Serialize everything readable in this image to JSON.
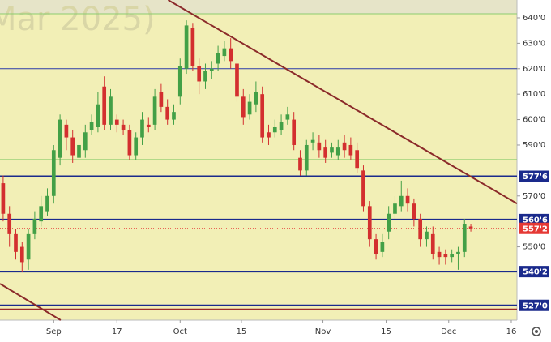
{
  "chart_data": {
    "type": "candlestick",
    "watermark": "Mar 2025)",
    "up_color": "#43a047",
    "down_color": "#d32f2f",
    "open": [
      575,
      563,
      555,
      550,
      545,
      555,
      560,
      564,
      570,
      585,
      598,
      593,
      585,
      588,
      596,
      597,
      613,
      598,
      600,
      598,
      596,
      586,
      593,
      598,
      598,
      611,
      605,
      600,
      609,
      620,
      636,
      621,
      615,
      619,
      622,
      625,
      628,
      622,
      609,
      602,
      606,
      610,
      595,
      595,
      596,
      600,
      600,
      585,
      580,
      591,
      591,
      589,
      587,
      586,
      591,
      590,
      588,
      580,
      566,
      553,
      548,
      556,
      563,
      566,
      570,
      567,
      561,
      553,
      555,
      548,
      547,
      546,
      547,
      548,
      558
    ],
    "high": [
      578,
      566,
      557,
      552,
      557,
      564,
      570,
      573,
      590,
      602,
      600,
      596,
      592,
      598,
      602,
      611,
      617,
      612,
      602,
      600,
      598,
      595,
      603,
      601,
      612,
      614,
      608,
      606,
      624,
      639,
      638,
      624,
      622,
      623,
      629,
      631,
      632,
      624,
      612,
      610,
      615,
      613,
      598,
      600,
      602,
      605,
      603,
      588,
      592,
      595,
      594,
      592,
      591,
      592,
      594,
      593,
      591,
      582,
      568,
      555,
      555,
      566,
      570,
      576,
      573,
      569,
      563,
      558,
      558,
      550,
      549,
      549,
      550,
      561,
      559
    ],
    "low": [
      560,
      550,
      545,
      540,
      541,
      553,
      558,
      562,
      567,
      582,
      588,
      583,
      581,
      585,
      594,
      595,
      596,
      596,
      595,
      594,
      584,
      584,
      590,
      595,
      596,
      603,
      598,
      598,
      606,
      618,
      619,
      610,
      612,
      616,
      619,
      623,
      620,
      607,
      598,
      600,
      603,
      591,
      590,
      593,
      594,
      598,
      588,
      578,
      578,
      588,
      585,
      583,
      585,
      584,
      585,
      584,
      579,
      564,
      550,
      545,
      546,
      553,
      561,
      564,
      564,
      558,
      550,
      550,
      545,
      543,
      543,
      544,
      541,
      546,
      556
    ],
    "close": [
      563,
      555,
      548,
      544,
      555,
      561,
      566,
      570,
      588,
      600,
      593,
      586,
      590,
      595,
      599,
      606,
      598,
      609,
      598,
      596,
      586,
      593,
      600,
      597,
      609,
      605,
      600,
      603,
      621,
      637,
      621,
      615,
      619,
      620,
      626,
      628,
      623,
      609,
      601,
      607,
      611,
      593,
      593,
      597,
      599,
      602,
      590,
      580,
      590,
      592,
      588,
      585,
      589,
      589,
      588,
      586,
      581,
      566,
      553,
      547,
      552,
      563,
      567,
      570,
      567,
      561,
      553,
      556,
      547,
      546,
      546,
      547,
      548,
      559,
      557.25
    ],
    "xlim": [
      -0.5,
      81.3
    ],
    "ylim": [
      521.2,
      647
    ],
    "xticks": [
      {
        "value": 8,
        "label": "Sep"
      },
      {
        "value": 18,
        "label": "17"
      },
      {
        "value": 28,
        "label": "Oct"
      },
      {
        "value": 37.7,
        "label": "15"
      },
      {
        "value": 50.6,
        "label": "Nov"
      },
      {
        "value": 60.6,
        "label": "15"
      },
      {
        "value": 70.5,
        "label": "Dec"
      },
      {
        "value": 80.4,
        "label": "16"
      }
    ],
    "yticks": [
      {
        "value": 640,
        "label": "640'0"
      },
      {
        "value": 630,
        "label": "630'0"
      },
      {
        "value": 620,
        "label": "620'0"
      },
      {
        "value": 610,
        "label": "610'0"
      },
      {
        "value": 600,
        "label": "600'0"
      },
      {
        "value": 590,
        "label": "590'0"
      },
      {
        "value": 570,
        "label": "570'0"
      },
      {
        "value": 550,
        "label": "550'0"
      }
    ],
    "levels": [
      {
        "value": 641.6,
        "color": "#8ccc6e",
        "width": 1,
        "dotted": false
      },
      {
        "value": 620,
        "color": "#2b3aa8",
        "width": 1,
        "dotted": false
      },
      {
        "value": 584.3,
        "color": "#8ccc6e",
        "width": 1,
        "dotted": false
      },
      {
        "value": 577.75,
        "label": "577'6",
        "color": "#1a2a8c",
        "width": 2,
        "dotted": false
      },
      {
        "value": 560.75,
        "label": "560'6",
        "color": "#1a2a8c",
        "width": 2,
        "dotted": false
      },
      {
        "value": 557.25,
        "label": "557'2",
        "color": "#e53935",
        "width": 1,
        "dotted": true
      },
      {
        "value": 540.25,
        "label": "540'2",
        "color": "#1a2a8c",
        "width": 2,
        "dotted": false
      },
      {
        "value": 527,
        "label": "527'0",
        "color": "#1a2a8c",
        "width": 2,
        "dotted": false
      },
      {
        "value": 525.5,
        "color": "#9b2a2a",
        "width": 1.5,
        "dotted": false
      }
    ],
    "trendlines": [
      {
        "x": [
          26.1,
          81.3
        ],
        "y": [
          647,
          567
        ],
        "color": "#8b2a2a"
      },
      {
        "x": [
          -0.5,
          9.1
        ],
        "y": [
          535.5,
          521.2
        ],
        "color": "#8b2a2a"
      }
    ]
  }
}
